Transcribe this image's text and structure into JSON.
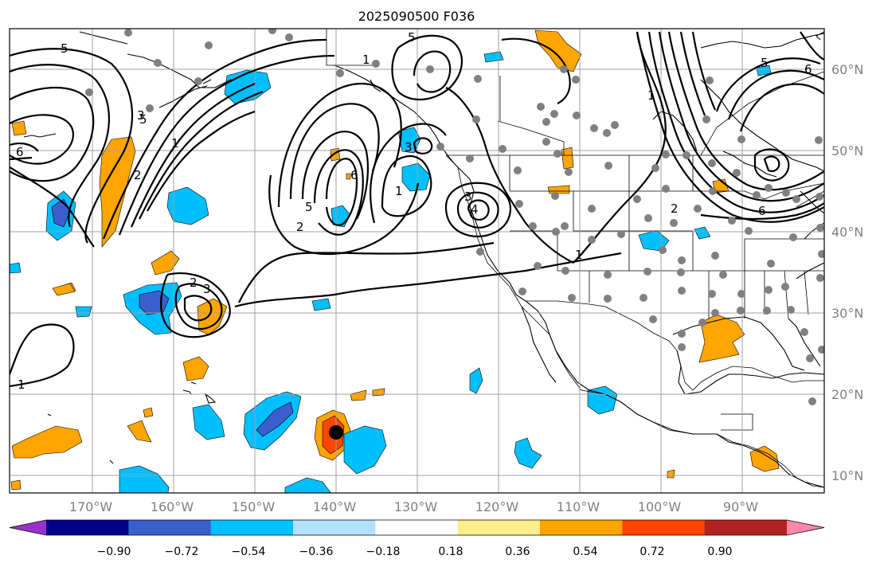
{
  "title": "2025090500 F036",
  "lon_labels": [
    "170°W",
    "160°W",
    "150°W",
    "140°W",
    "130°W",
    "120°W",
    "110°W",
    "100°W",
    "90°W"
  ],
  "lat_labels": [
    "60°N",
    "50°N",
    "40°N",
    "30°N",
    "20°N",
    "10°N"
  ],
  "colorbar": {
    "ticks": [
      "−0.90",
      "−0.72",
      "−0.54",
      "−0.36",
      "−0.18",
      "0.18",
      "0.36",
      "0.54",
      "0.72",
      "0.90"
    ],
    "colors": [
      "#9932cc",
      "#00008b",
      "#3a5fcd",
      "#00bfff",
      "#b0e2ff",
      "#ffffff",
      "#ffec8b",
      "#ffa500",
      "#ff4500",
      "#b22222",
      "#ff88aa"
    ]
  },
  "contour_labels": [
    "5",
    "6",
    "5",
    "1",
    "6",
    "5",
    "3",
    "1",
    "2",
    "2",
    "3",
    "4",
    "1",
    "1",
    "2",
    "3",
    "3",
    "2",
    "1",
    "5",
    "6",
    "5",
    "6",
    "1"
  ],
  "colors": {
    "map_border": "#000000",
    "grid": "#a0a0a0",
    "station_dot": "#808080",
    "marker": "#000000",
    "contour": "#000000"
  }
}
